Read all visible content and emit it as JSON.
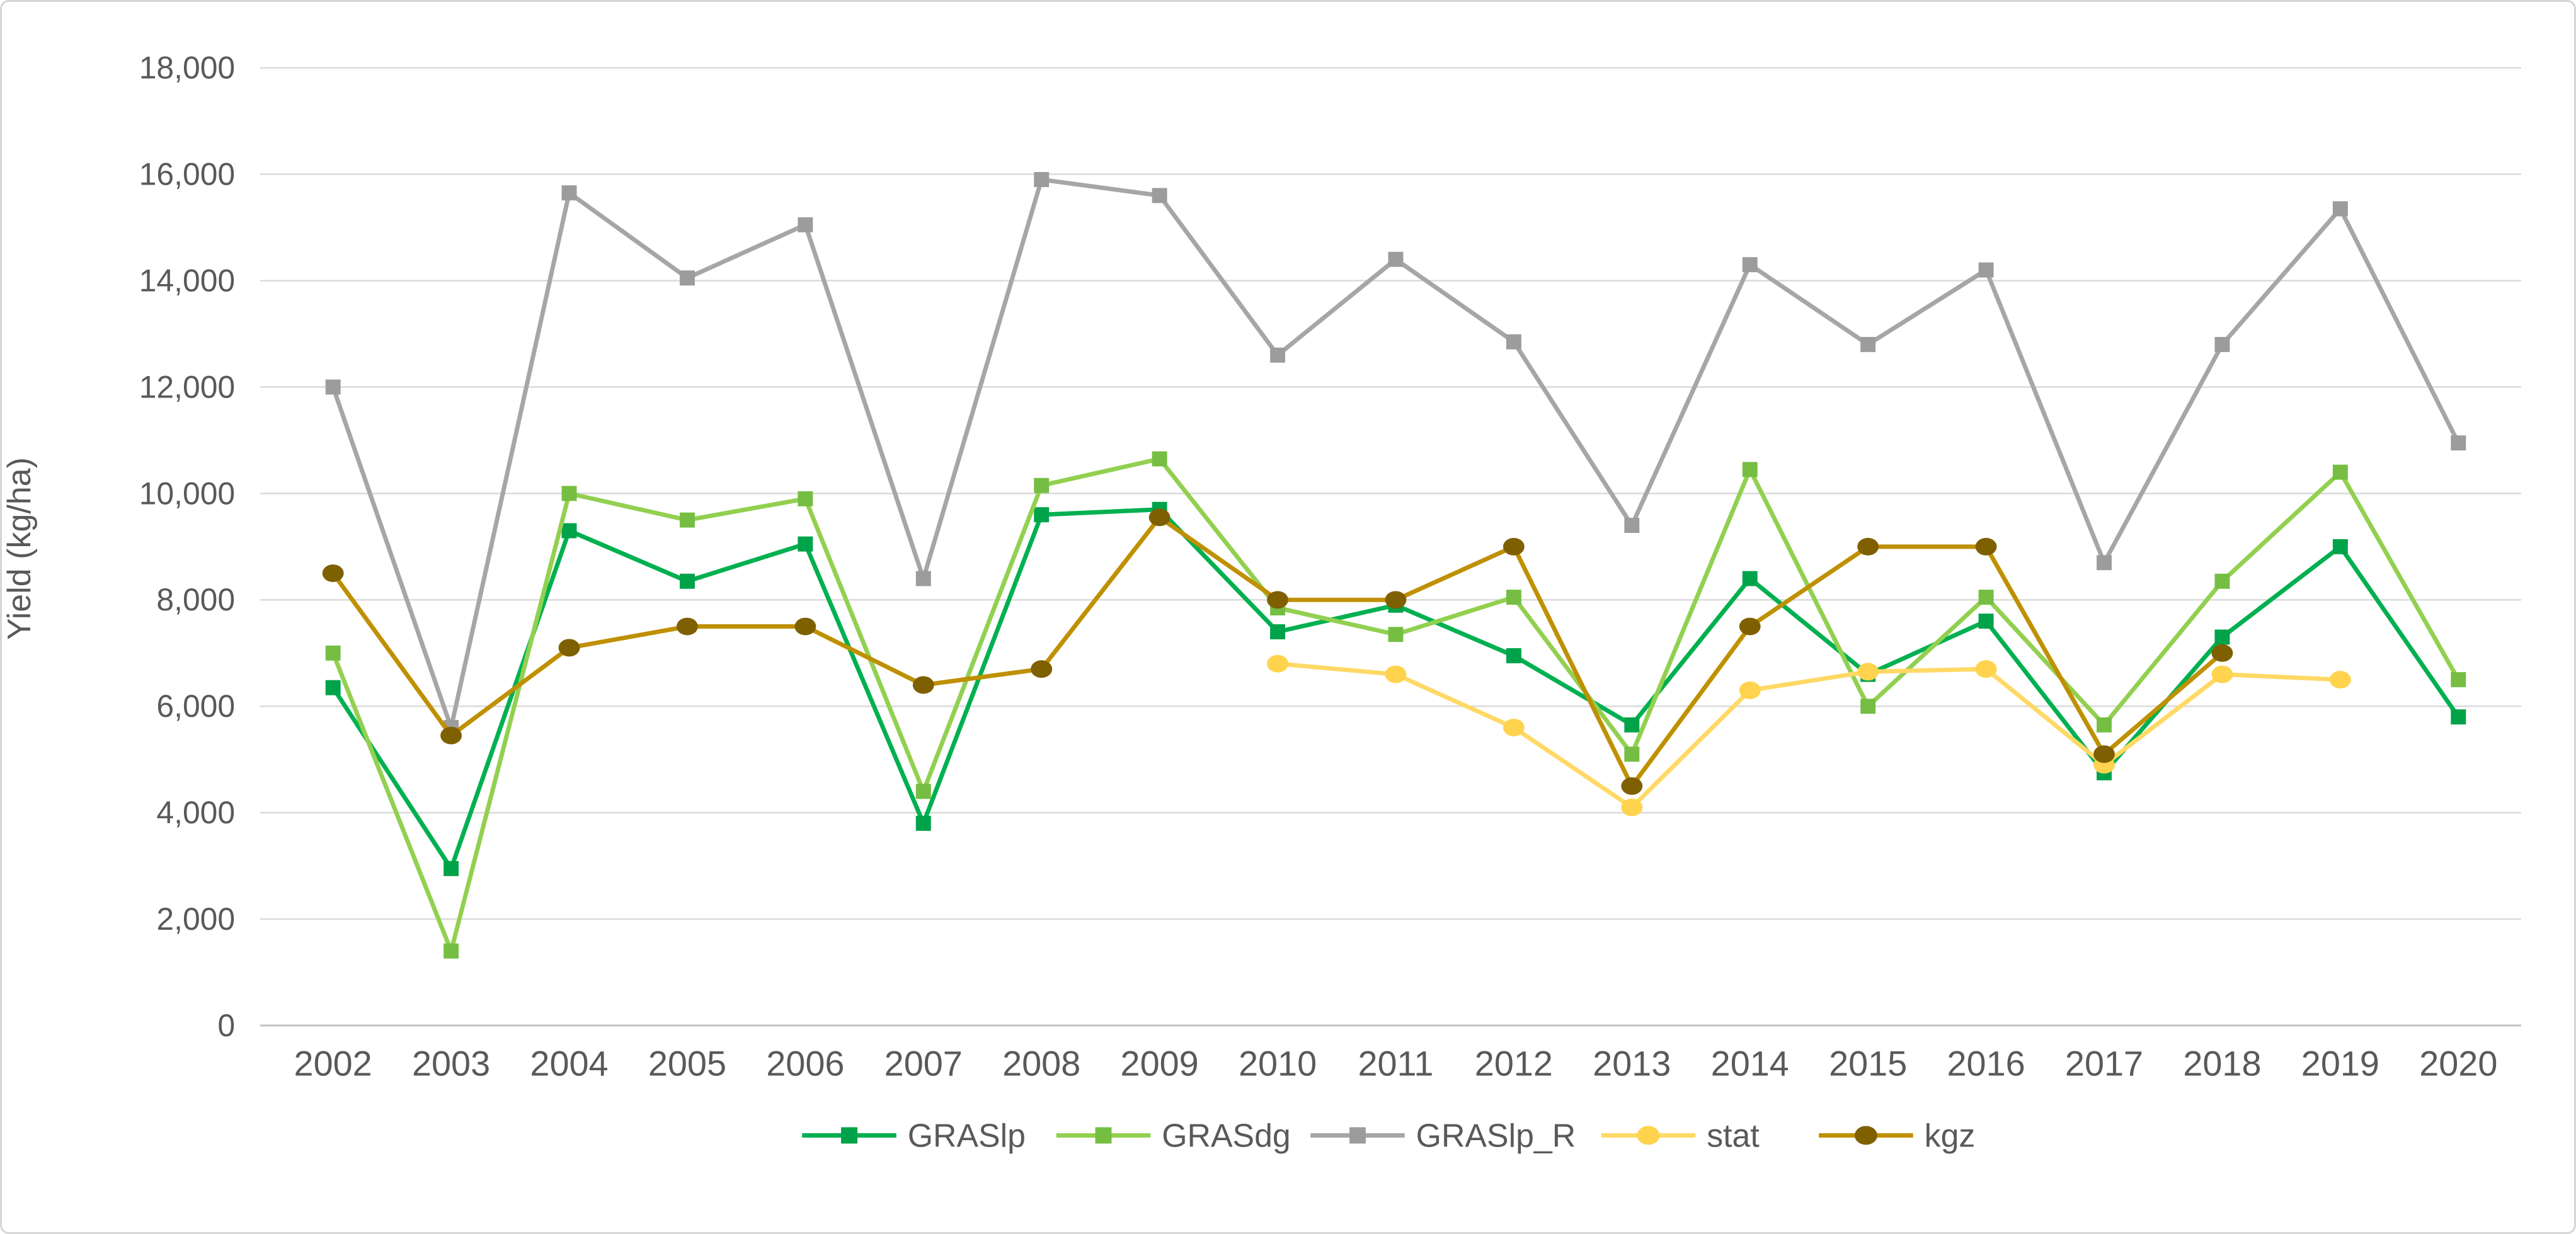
{
  "figure": {
    "background": "#ffffff",
    "border_color": "#d6d6d6"
  },
  "styles": {
    "text_color": "#595959",
    "gridline_color": "#d9d9d9",
    "axis_line_color": "#bfbfbf",
    "tick_font_size": 50,
    "x_tick_font_size": 56,
    "legend_font_size": 52
  },
  "chart_data": {
    "type": "line",
    "title": "",
    "xlabel": "",
    "ylabel": "Yield (kg/ha)",
    "ylim": [
      0,
      18000
    ],
    "ytick_interval": 2000,
    "ytick_labels": [
      "0",
      "2,000",
      "4,000",
      "6,000",
      "8,000",
      "10,000",
      "12,000",
      "14,000",
      "16,000",
      "18,000"
    ],
    "grid": true,
    "legend_position": "bottom",
    "categories": [
      2002,
      2003,
      2004,
      2005,
      2006,
      2007,
      2008,
      2009,
      2010,
      2011,
      2012,
      2013,
      2014,
      2015,
      2016,
      2017,
      2018,
      2019,
      2020
    ],
    "series": [
      {
        "name": "GRASlp",
        "color": "#00B050",
        "marker_color": "#00A24A",
        "marker": "square",
        "values": [
          6350,
          2950,
          9300,
          8350,
          9050,
          3800,
          9600,
          9700,
          7400,
          7900,
          6950,
          5650,
          8400,
          6600,
          7600,
          4750,
          7300,
          9000,
          5800
        ]
      },
      {
        "name": "GRASdg",
        "color": "#92D050",
        "marker_color": "#76BE43",
        "marker": "square",
        "values": [
          7000,
          1400,
          10000,
          9500,
          9900,
          4400,
          10150,
          10650,
          7850,
          7350,
          8050,
          5100,
          10450,
          6000,
          8050,
          5650,
          8350,
          10400,
          6500
        ]
      },
      {
        "name": "GRASlp_R",
        "color": "#A6A6A6",
        "marker_color": "#9C9C9C",
        "marker": "square",
        "values": [
          12000,
          5600,
          15650,
          14050,
          15050,
          8400,
          15900,
          15600,
          12600,
          14400,
          12850,
          9400,
          14300,
          12800,
          14200,
          8700,
          12800,
          15350,
          10950
        ]
      },
      {
        "name": "stat",
        "color": "#FFD965",
        "marker_color": "#FFD34D",
        "marker": "circle",
        "values": [
          null,
          null,
          null,
          null,
          null,
          null,
          null,
          null,
          6800,
          6600,
          5600,
          4100,
          6300,
          6650,
          6700,
          4900,
          6600,
          6500,
          null
        ]
      },
      {
        "name": "kgz",
        "color": "#BF9000",
        "marker_color": "#7F6000",
        "marker": "circle",
        "values": [
          8500,
          5450,
          7100,
          7500,
          7500,
          6400,
          6700,
          9550,
          8000,
          8000,
          9000,
          4500,
          7500,
          9000,
          9000,
          5100,
          7000,
          null,
          null
        ]
      }
    ]
  }
}
